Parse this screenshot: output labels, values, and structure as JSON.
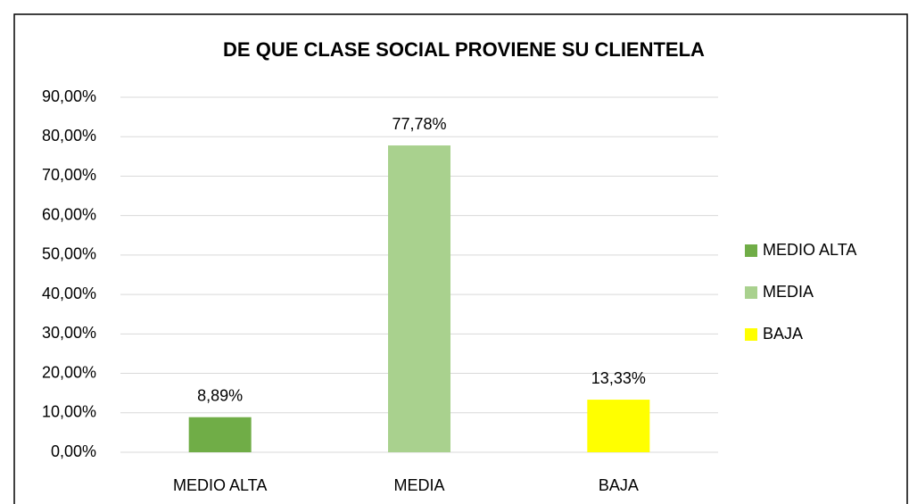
{
  "chart_data": {
    "type": "bar",
    "title": "DE QUE CLASE SOCIAL PROVIENE SU CLIENTELA",
    "categories": [
      "MEDIO ALTA",
      "MEDIA",
      "BAJA"
    ],
    "values": [
      8.89,
      77.78,
      13.33
    ],
    "value_labels": [
      "8,89%",
      "77,78%",
      "13,33%"
    ],
    "colors": [
      "#70ad47",
      "#a9d18e",
      "#ffff00"
    ],
    "ylim": [
      0,
      90
    ],
    "yticks": [
      {
        "value": 0,
        "label": "0,00%"
      },
      {
        "value": 10,
        "label": "10,00%"
      },
      {
        "value": 20,
        "label": "20,00%"
      },
      {
        "value": 30,
        "label": "30,00%"
      },
      {
        "value": 40,
        "label": "40,00%"
      },
      {
        "value": 50,
        "label": "50,00%"
      },
      {
        "value": 60,
        "label": "60,00%"
      },
      {
        "value": 70,
        "label": "70,00%"
      },
      {
        "value": 80,
        "label": "80,00%"
      },
      {
        "value": 90,
        "label": "90,00%"
      }
    ],
    "grid": true,
    "legend": "right"
  }
}
